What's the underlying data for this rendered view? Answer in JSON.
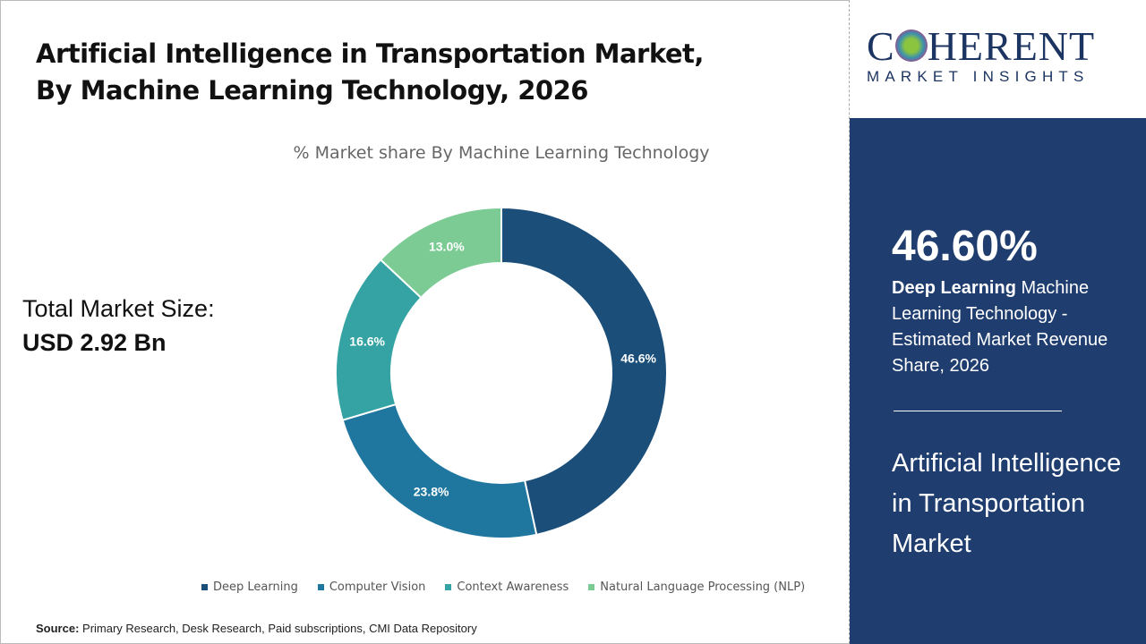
{
  "title_line1": "Artificial Intelligence in Transportation Market,",
  "title_line2": "By Machine Learning Technology, 2026",
  "total_label": "Total Market Size:",
  "total_value": "USD 2.92 Bn",
  "source_label": "Source:",
  "source_text": " Primary Research, Desk Research, Paid subscriptions, CMI Data Repository",
  "logo": {
    "line1a": "C",
    "line1b": "HERENT",
    "line2": "MARKET INSIGHTS"
  },
  "panel": {
    "percent": "46.60%",
    "desc_bold": "Deep Learning",
    "desc_rest": " Machine Learning Technology - Estimated Market Revenue Share, 2026",
    "market_name": "Artificial Intelligence in Transportation Market"
  },
  "chart_data": {
    "type": "pie",
    "donut": true,
    "title": "% Market share By Machine Learning Technology",
    "categories": [
      "Deep Learning",
      "Computer Vision",
      "Context Awareness",
      "Natural Language Processing (NLP)"
    ],
    "values": [
      46.6,
      23.8,
      16.6,
      13.0
    ],
    "labels": [
      "46.6%",
      "23.8%",
      "16.6%",
      "13.0%"
    ],
    "colors": [
      "#1b4f7a",
      "#1f77a0",
      "#35a3a3",
      "#7ccb95"
    ],
    "legend_position": "bottom"
  }
}
